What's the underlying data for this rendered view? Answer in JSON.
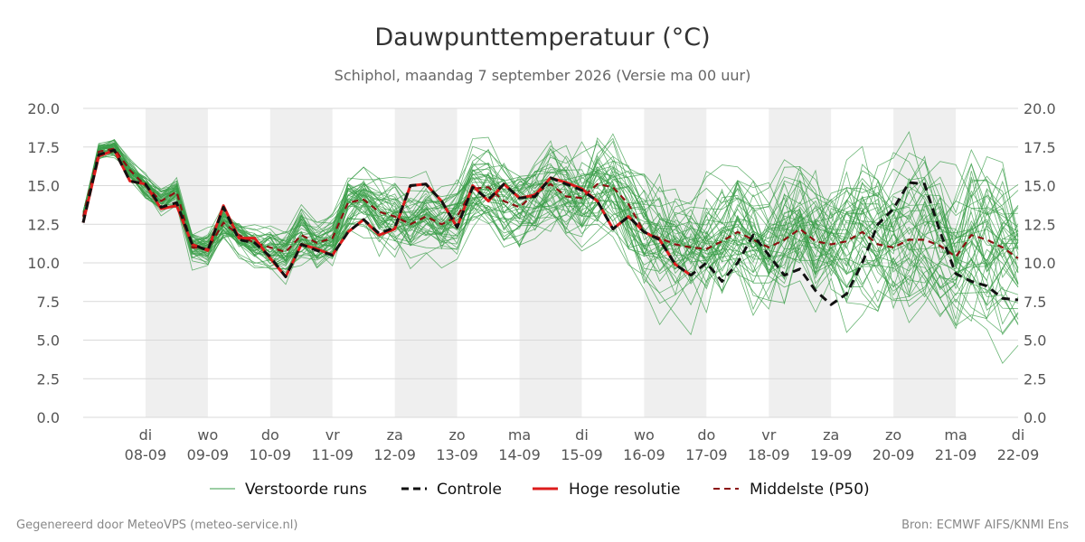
{
  "chart_data": {
    "type": "line",
    "title": "Dauwpunttemperatuur (°C)",
    "subtitle": "Schiphol, maandag  7 september 2026 (Versie ma 00 uur)",
    "x_unit": "days since 2026-09-07 00:00",
    "xlim": [
      0,
      15
    ],
    "ylim": [
      0,
      20
    ],
    "yticks": [
      0.0,
      2.5,
      5.0,
      7.5,
      10.0,
      12.5,
      15.0,
      17.5,
      20.0
    ],
    "ytick_labels": [
      "0.0",
      "2.5",
      "5.0",
      "7.5",
      "10.0",
      "12.5",
      "15.0",
      "17.5",
      "20.0"
    ],
    "xticks": [
      {
        "day": "di",
        "date": "08-09"
      },
      {
        "day": "wo",
        "date": "09-09"
      },
      {
        "day": "do",
        "date": "10-09"
      },
      {
        "day": "vr",
        "date": "11-09"
      },
      {
        "day": "za",
        "date": "12-09"
      },
      {
        "day": "zo",
        "date": "13-09"
      },
      {
        "day": "ma",
        "date": "14-09"
      },
      {
        "day": "di",
        "date": "15-09"
      },
      {
        "day": "wo",
        "date": "16-09"
      },
      {
        "day": "do",
        "date": "17-09"
      },
      {
        "day": "vr",
        "date": "18-09"
      },
      {
        "day": "za",
        "date": "19-09"
      },
      {
        "day": "zo",
        "date": "20-09"
      },
      {
        "day": "ma",
        "date": "21-09"
      },
      {
        "day": "di",
        "date": "22-09"
      }
    ],
    "shaded_days": [
      1,
      3,
      5,
      7,
      9,
      11,
      13
    ],
    "grid": true,
    "legend_position": "bottom",
    "ensemble": {
      "name": "Verstoorde runs",
      "color": "#3a9e48",
      "members": 50
    },
    "series": [
      {
        "name": "Controle",
        "color": "#111111",
        "style": "dashed",
        "x": [
          0,
          0.25,
          0.5,
          0.75,
          1,
          1.25,
          1.5,
          1.75,
          2,
          2.25,
          2.5,
          2.75,
          3,
          3.25,
          3.5,
          3.75,
          4,
          4.25,
          4.5,
          4.75,
          5,
          5.25,
          5.5,
          5.75,
          6,
          6.25,
          6.5,
          6.75,
          7,
          7.25,
          7.5,
          7.75,
          8,
          8.25,
          8.5,
          8.75,
          9,
          9.25,
          9.5,
          9.75,
          10,
          10.25,
          10.5,
          10.75,
          11,
          11.25,
          11.5,
          11.75,
          12,
          12.25,
          12.5,
          12.75,
          13,
          13.25,
          13.5,
          13.75,
          14,
          14.25,
          14.5,
          14.75,
          15
        ],
        "values": [
          12.6,
          17.0,
          17.3,
          15.3,
          15.1,
          13.6,
          13.9,
          11.2,
          10.8,
          13.6,
          11.5,
          11.3,
          10.4,
          9.1,
          11.2,
          10.8,
          10.5,
          12.0,
          12.8,
          11.9,
          12.3,
          15.0,
          15.1,
          14.0,
          12.3,
          14.9,
          14.1,
          15.1,
          14.2,
          14.3,
          15.5,
          15.1,
          14.7,
          14.0,
          12.2,
          13.0,
          12.0,
          11.5,
          9.9,
          9.2,
          10.0,
          8.8,
          10.0,
          11.8,
          10.5,
          9.2,
          9.6,
          8.2,
          7.3,
          8.0,
          10.0,
          12.5,
          13.5,
          15.2,
          15.1,
          12.0,
          9.3,
          8.8,
          8.5,
          7.7,
          7.6
        ]
      },
      {
        "name": "Hoge resolutie",
        "color": "#dd1c1c",
        "style": "solid",
        "x": [
          0,
          0.25,
          0.5,
          0.75,
          1,
          1.25,
          1.5,
          1.75,
          2,
          2.25,
          2.5,
          2.75,
          3,
          3.25,
          3.5,
          3.75,
          4,
          4.25,
          4.5,
          4.75,
          5,
          5.25,
          5.5,
          5.75,
          6,
          6.25,
          6.5,
          6.75,
          7,
          7.25,
          7.5,
          7.75,
          8,
          8.25,
          8.5,
          8.75,
          9,
          9.25,
          9.5,
          9.75
        ],
        "values": [
          12.6,
          16.9,
          17.3,
          15.3,
          15.1,
          13.5,
          13.7,
          11.2,
          10.8,
          13.7,
          11.6,
          11.6,
          10.3,
          9.1,
          11.2,
          10.9,
          10.5,
          12.0,
          12.8,
          11.8,
          12.2,
          15.0,
          15.1,
          14.0,
          12.3,
          15.0,
          14.0,
          15.1,
          14.2,
          14.4,
          15.5,
          15.2,
          14.8,
          14.0,
          12.2,
          13.0,
          12.0,
          11.5,
          9.9,
          9.2
        ]
      },
      {
        "name": "Middelste (P50)",
        "color": "#8b1010",
        "style": "dashed",
        "x": [
          0,
          0.25,
          0.5,
          0.75,
          1,
          1.25,
          1.5,
          1.75,
          2,
          2.25,
          2.5,
          2.75,
          3,
          3.25,
          3.5,
          3.75,
          4,
          4.25,
          4.5,
          4.75,
          5,
          5.25,
          5.5,
          5.75,
          6,
          6.25,
          6.5,
          6.75,
          7,
          7.25,
          7.5,
          7.75,
          8,
          8.25,
          8.5,
          8.75,
          9,
          9.25,
          9.5,
          9.75,
          10,
          10.25,
          10.5,
          10.75,
          11,
          11.25,
          11.5,
          11.75,
          12,
          12.25,
          12.5,
          12.75,
          13,
          13.25,
          13.5,
          13.75,
          14,
          14.25,
          14.5,
          14.75,
          15
        ],
        "values": [
          13.0,
          17.2,
          17.4,
          16.0,
          15.0,
          14.0,
          14.6,
          11.0,
          10.9,
          12.6,
          11.8,
          11.3,
          11.0,
          10.7,
          11.8,
          11.3,
          11.6,
          13.9,
          14.1,
          13.3,
          13.0,
          12.5,
          13.0,
          12.5,
          13.0,
          14.8,
          14.9,
          14.0,
          13.6,
          14.5,
          15.1,
          14.3,
          14.2,
          15.1,
          14.9,
          13.8,
          12.0,
          11.6,
          11.2,
          11.0,
          10.9,
          11.4,
          12.0,
          11.5,
          11.0,
          11.5,
          12.2,
          11.4,
          11.2,
          11.4,
          12.0,
          11.2,
          11.0,
          11.5,
          11.5,
          11.1,
          10.4,
          11.8,
          11.5,
          11.0,
          10.3
        ]
      }
    ]
  },
  "legend": {
    "ensemble_label": "Verstoorde runs",
    "control_label": "Controle",
    "hires_label": "Hoge resolutie",
    "median_label": "Middelste (P50)"
  },
  "footer": {
    "left": "Gegenereerd door MeteoVPS (meteo-service.nl)",
    "right": "Bron: ECMWF AIFS/KNMI Ens"
  }
}
